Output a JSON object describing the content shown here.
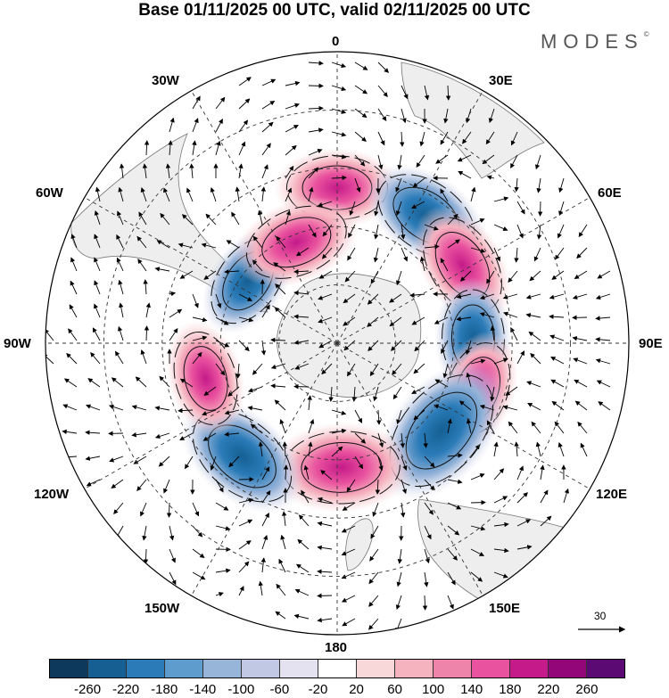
{
  "title": "Base 01/11/2025 00 UTC, valid 02/11/2025 00 UTC",
  "brand": "MODES",
  "brand_mark": "©",
  "longitude_labels": {
    "lon_0": "0",
    "lon_30e": "30E",
    "lon_60e": "60E",
    "lon_90e": "90E",
    "lon_120e": "120E",
    "lon_150e": "150E",
    "lon_180": "180",
    "lon_150w": "150W",
    "lon_120w": "120W",
    "lon_90w": "90W",
    "lon_60w": "60W",
    "lon_30w": "30W"
  },
  "vector_reference": {
    "label": "30"
  },
  "colorbar": {
    "colors": [
      "#0d3a5c",
      "#155f93",
      "#2a7bb8",
      "#5d9ccc",
      "#97b4d9",
      "#c0c8e4",
      "#e4e1f0",
      "#ffffff",
      "#f9d8da",
      "#f5b3bf",
      "#ef84aa",
      "#e9529e",
      "#c51a8a",
      "#92067a",
      "#5b0a74"
    ],
    "ticks": [
      "-260",
      "-220",
      "-180",
      "-140",
      "-100",
      "-60",
      "-20",
      "20",
      "60",
      "100",
      "140",
      "180",
      "220",
      "260"
    ]
  },
  "anomaly_centers": [
    {
      "lon_deg": 0,
      "lat_deg": -50,
      "value": 140
    },
    {
      "lon_deg": 35,
      "lat_deg": -50,
      "value": -160
    },
    {
      "lon_deg": 58,
      "lat_deg": -52,
      "value": 150
    },
    {
      "lon_deg": 88,
      "lat_deg": -55,
      "value": -130
    },
    {
      "lon_deg": 108,
      "lat_deg": -52,
      "value": 120
    },
    {
      "lon_deg": 130,
      "lat_deg": -55,
      "value": -230
    },
    {
      "lon_deg": 178,
      "lat_deg": -58,
      "value": 190
    },
    {
      "lon_deg": -140,
      "lat_deg": -52,
      "value": -180
    },
    {
      "lon_deg": -105,
      "lat_deg": -55,
      "value": 120
    },
    {
      "lon_deg": -55,
      "lat_deg": -62,
      "value": -120
    },
    {
      "lon_deg": -22,
      "lat_deg": -62,
      "value": 150
    }
  ]
}
